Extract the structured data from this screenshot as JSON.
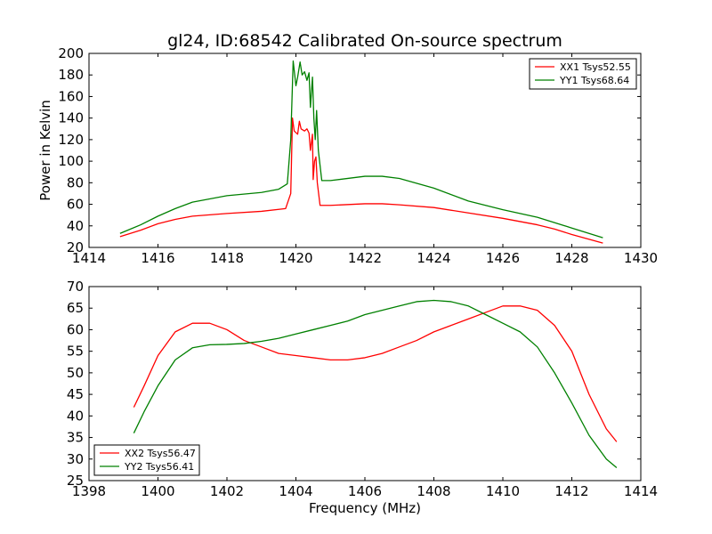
{
  "chart_data": [
    {
      "type": "line",
      "title": "gl24, ID:68542 Calibrated On-source spectrum",
      "xlabel": "",
      "ylabel": "Power in Kelvin",
      "xlim": [
        1414,
        1430
      ],
      "ylim": [
        20,
        200
      ],
      "xticks": [
        "1414",
        "1416",
        "1418",
        "1420",
        "1422",
        "1424",
        "1426",
        "1428",
        "1430"
      ],
      "yticks": [
        "20",
        "40",
        "60",
        "80",
        "100",
        "120",
        "140",
        "160",
        "180",
        "200"
      ],
      "legend_position": "top-right",
      "series": [
        {
          "name": "XX1 Tsys52.55",
          "color": "#ff0000",
          "x": [
            1414.9,
            1415.5,
            1416.0,
            1416.5,
            1417.0,
            1418.0,
            1419.0,
            1419.7,
            1419.85,
            1419.9,
            1419.95,
            1420.05,
            1420.1,
            1420.15,
            1420.25,
            1420.32,
            1420.38,
            1420.42,
            1420.48,
            1420.5,
            1420.54,
            1420.58,
            1420.62,
            1420.7,
            1421.0,
            1422.0,
            1422.5,
            1423.0,
            1424.0,
            1425.0,
            1426.0,
            1427.0,
            1427.5,
            1428.0,
            1428.9
          ],
          "values": [
            30,
            36,
            42,
            46,
            49,
            51.5,
            53.5,
            56,
            70,
            140,
            128,
            125,
            137,
            130,
            128,
            130,
            126,
            110,
            125,
            83,
            100,
            104,
            80,
            59,
            59,
            60.5,
            60.5,
            59.5,
            57,
            52,
            47,
            41,
            37,
            32,
            24
          ]
        },
        {
          "name": "YY1 Tsys68.64",
          "color": "#008000",
          "x": [
            1414.9,
            1415.5,
            1416.0,
            1416.5,
            1417.0,
            1418.0,
            1419.0,
            1419.5,
            1419.75,
            1419.85,
            1419.92,
            1420.0,
            1420.05,
            1420.12,
            1420.18,
            1420.25,
            1420.32,
            1420.38,
            1420.42,
            1420.48,
            1420.52,
            1420.56,
            1420.6,
            1420.65,
            1420.75,
            1421.0,
            1422.0,
            1422.5,
            1423.0,
            1424.0,
            1425.0,
            1426.0,
            1427.0,
            1428.0,
            1428.9
          ],
          "values": [
            33,
            41,
            49,
            56,
            62,
            68,
            71,
            74,
            79,
            120,
            193,
            170,
            178,
            192,
            180,
            183,
            175,
            182,
            150,
            178,
            140,
            120,
            147,
            110,
            82,
            82,
            86,
            86,
            84,
            75,
            63,
            55,
            48,
            38,
            29
          ]
        }
      ]
    },
    {
      "type": "line",
      "title": "",
      "xlabel": "Frequency (MHz)",
      "ylabel": "",
      "xlim": [
        1398,
        1414
      ],
      "ylim": [
        25,
        70
      ],
      "xticks": [
        "1398",
        "1400",
        "1402",
        "1404",
        "1406",
        "1408",
        "1410",
        "1412",
        "1414"
      ],
      "yticks": [
        "25",
        "30",
        "35",
        "40",
        "45",
        "50",
        "55",
        "60",
        "65",
        "70"
      ],
      "legend_position": "bottom-left",
      "series": [
        {
          "name": "XX2 Tsys56.47",
          "color": "#ff0000",
          "x": [
            1399.3,
            1399.6,
            1400.0,
            1400.5,
            1401.0,
            1401.5,
            1402.0,
            1402.5,
            1403.0,
            1403.5,
            1404.0,
            1404.5,
            1405.0,
            1405.5,
            1406.0,
            1406.5,
            1407.0,
            1407.5,
            1408.0,
            1408.5,
            1409.0,
            1409.5,
            1410.0,
            1410.5,
            1411.0,
            1411.5,
            1412.0,
            1412.5,
            1413.0,
            1413.3
          ],
          "values": [
            42,
            47,
            54,
            59.5,
            61.5,
            61.5,
            60,
            57.5,
            56,
            54.5,
            54,
            53.5,
            53,
            53,
            53.5,
            54.5,
            56,
            57.5,
            59.5,
            61,
            62.5,
            64,
            65.5,
            65.5,
            64.5,
            61,
            55,
            45,
            37,
            34
          ]
        },
        {
          "name": "YY2 Tsys56.41",
          "color": "#008000",
          "x": [
            1399.3,
            1399.6,
            1400.0,
            1400.5,
            1401.0,
            1401.5,
            1402.0,
            1402.5,
            1403.0,
            1403.5,
            1404.0,
            1404.5,
            1405.0,
            1405.5,
            1406.0,
            1406.5,
            1407.0,
            1407.5,
            1408.0,
            1408.5,
            1409.0,
            1409.5,
            1410.0,
            1410.5,
            1411.0,
            1411.5,
            1412.0,
            1412.5,
            1413.0,
            1413.3
          ],
          "values": [
            36,
            41,
            47,
            53,
            55.8,
            56.5,
            56.6,
            56.8,
            57.3,
            58,
            59,
            60,
            61,
            62,
            63.5,
            64.5,
            65.5,
            66.5,
            66.8,
            66.5,
            65.5,
            63.5,
            61.5,
            59.5,
            56,
            50,
            43,
            35.5,
            30,
            28
          ]
        }
      ]
    }
  ]
}
